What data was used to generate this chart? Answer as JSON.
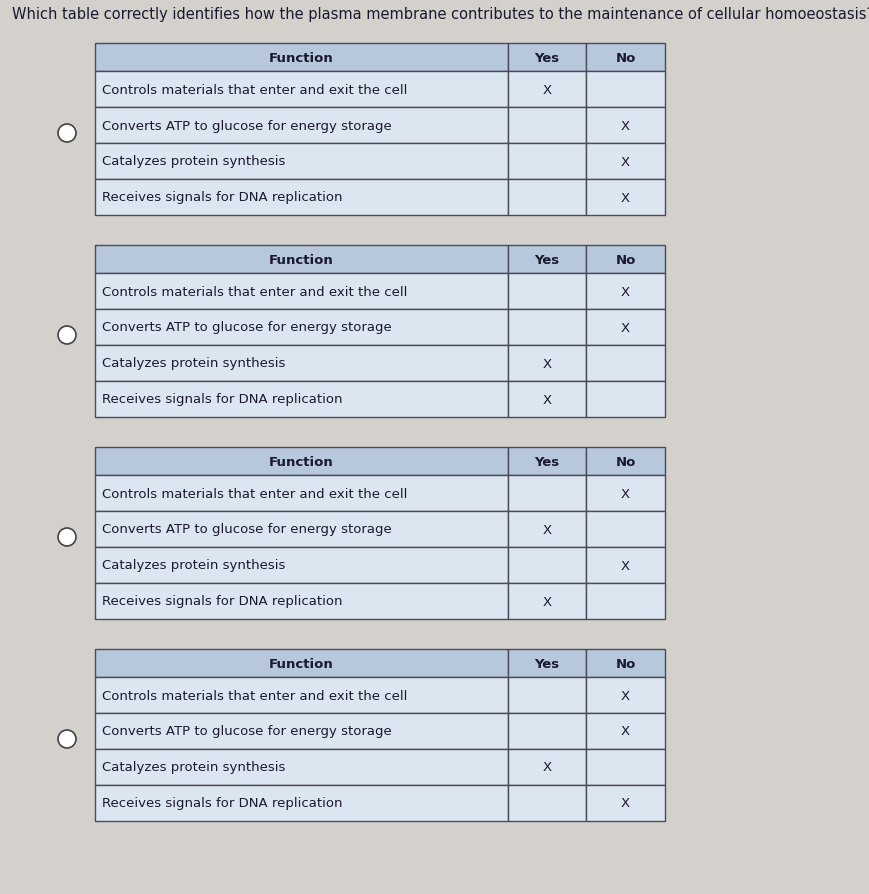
{
  "question": "Which table correctly identifies how the plasma membrane contributes to the maintenance of cellular homoeostasis?",
  "background_color": "#d4d0cc",
  "tables": [
    {
      "rows": [
        {
          "function": "Function",
          "yes": "Yes",
          "no": "No",
          "header": true
        },
        {
          "function": "Controls materials that enter and exit the cell",
          "yes": "X",
          "no": ""
        },
        {
          "function": "Converts ATP to glucose for energy storage",
          "yes": "",
          "no": "X"
        },
        {
          "function": "Catalyzes protein synthesis",
          "yes": "",
          "no": "X"
        },
        {
          "function": "Receives signals for DNA replication",
          "yes": "",
          "no": "X"
        }
      ]
    },
    {
      "rows": [
        {
          "function": "Function",
          "yes": "Yes",
          "no": "No",
          "header": true
        },
        {
          "function": "Controls materials that enter and exit the cell",
          "yes": "",
          "no": "X"
        },
        {
          "function": "Converts ATP to glucose for energy storage",
          "yes": "",
          "no": "X"
        },
        {
          "function": "Catalyzes protein synthesis",
          "yes": "X",
          "no": ""
        },
        {
          "function": "Receives signals for DNA replication",
          "yes": "X",
          "no": ""
        }
      ]
    },
    {
      "rows": [
        {
          "function": "Function",
          "yes": "Yes",
          "no": "No",
          "header": true
        },
        {
          "function": "Controls materials that enter and exit the cell",
          "yes": "",
          "no": "X"
        },
        {
          "function": "Converts ATP to glucose for energy storage",
          "yes": "X",
          "no": ""
        },
        {
          "function": "Catalyzes protein synthesis",
          "yes": "",
          "no": "X"
        },
        {
          "function": "Receives signals for DNA replication",
          "yes": "X",
          "no": ""
        }
      ]
    },
    {
      "rows": [
        {
          "function": "Function",
          "yes": "Yes",
          "no": "No",
          "header": true
        },
        {
          "function": "Controls materials that enter and exit the cell",
          "yes": "",
          "no": "X"
        },
        {
          "function": "Converts ATP to glucose for energy storage",
          "yes": "",
          "no": "X"
        },
        {
          "function": "Catalyzes protein synthesis",
          "yes": "X",
          "no": ""
        },
        {
          "function": "Receives signals for DNA replication",
          "yes": "",
          "no": "X"
        }
      ]
    }
  ],
  "header_bg": "#b8c8dc",
  "row_bg": "#dce6f0",
  "border_color": "#4a4a5a",
  "text_color": "#1a1a2e",
  "question_fontsize": 10.5,
  "header_fontsize": 9.5,
  "row_fontsize": 9.5
}
